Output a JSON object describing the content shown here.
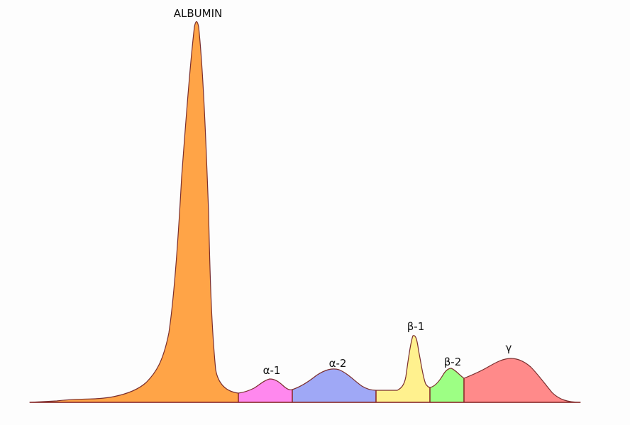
{
  "diagram": {
    "fractions": [
      {
        "key": "albumin",
        "label": "ALBUMIN",
        "color": "#ffa447"
      },
      {
        "key": "alpha1",
        "label": "α-1",
        "color": "#ff88ee"
      },
      {
        "key": "alpha2",
        "label": "α-2",
        "color": "#9fa8f6"
      },
      {
        "key": "beta1",
        "label": "β-1",
        "color": "#fff18e"
      },
      {
        "key": "beta2",
        "label": "β-2",
        "color": "#9dff84"
      },
      {
        "key": "gamma",
        "label": "γ",
        "color": "#ff8a8a"
      }
    ],
    "outline_color": "#7a2e2e"
  }
}
